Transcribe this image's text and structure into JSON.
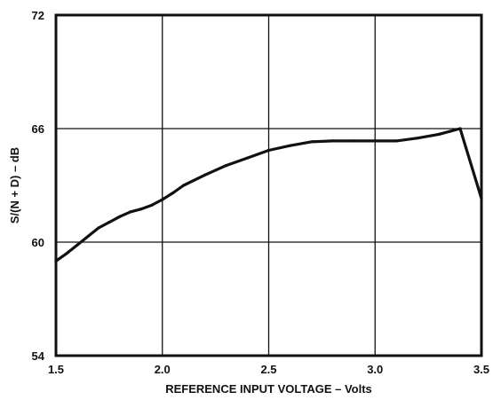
{
  "chart_data": {
    "type": "line",
    "title": "",
    "xlabel": "REFERENCE INPUT VOLTAGE – Volts",
    "ylabel": "S/(N + D) – dB",
    "xlim": [
      1.5,
      3.5
    ],
    "ylim": [
      54,
      72
    ],
    "x_ticks": [
      1.5,
      2.0,
      2.5,
      3.0,
      3.5
    ],
    "x_tick_labels": [
      "1.5",
      "2.0",
      "2.5",
      "3.0",
      "3.5"
    ],
    "y_ticks": [
      54,
      60,
      66,
      72
    ],
    "y_tick_labels": [
      "54",
      "60",
      "66",
      "72"
    ],
    "grid": true,
    "legend": "none",
    "series": [
      {
        "color": "#111111",
        "x": [
          1.5,
          1.55,
          1.6,
          1.65,
          1.7,
          1.75,
          1.8,
          1.85,
          1.9,
          1.95,
          2.0,
          2.05,
          2.1,
          2.2,
          2.3,
          2.4,
          2.5,
          2.6,
          2.7,
          2.8,
          2.9,
          3.0,
          3.1,
          3.2,
          3.3,
          3.35,
          3.4,
          3.5
        ],
        "values": [
          59.0,
          59.4,
          59.85,
          60.3,
          60.75,
          61.05,
          61.35,
          61.6,
          61.75,
          61.95,
          62.25,
          62.6,
          63.0,
          63.55,
          64.05,
          64.45,
          64.85,
          65.1,
          65.3,
          65.35,
          65.35,
          65.35,
          65.35,
          65.5,
          65.7,
          65.85,
          66.0,
          62.3
        ]
      }
    ]
  }
}
